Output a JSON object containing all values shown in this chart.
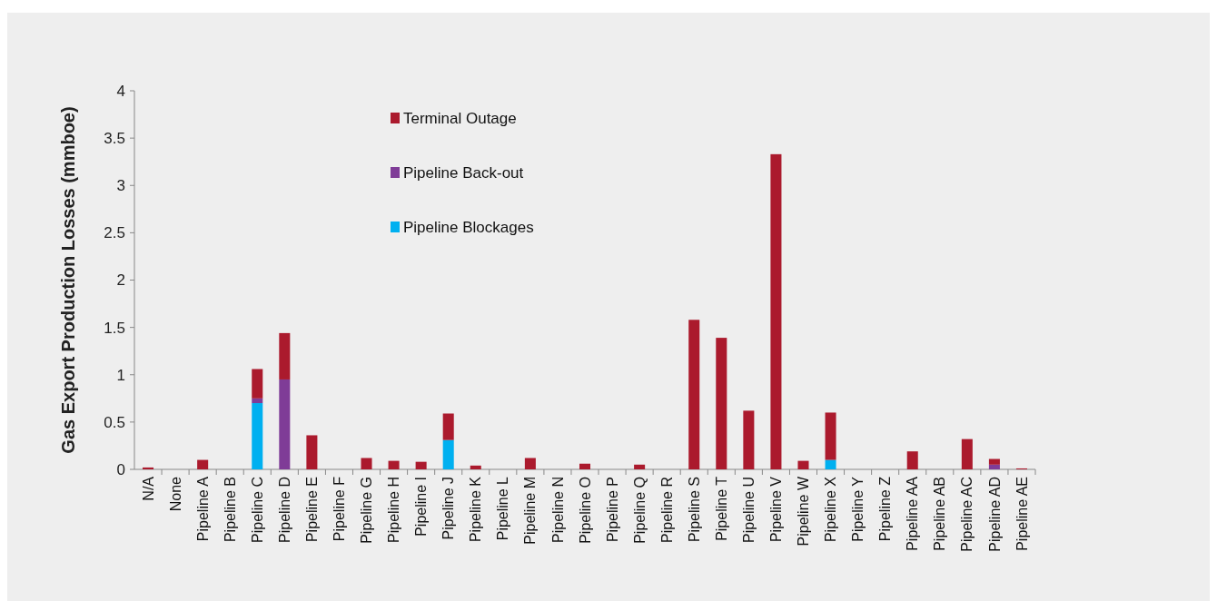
{
  "chart_data": {
    "type": "bar",
    "ylabel": "Gas Export Production Losses (mmboe)",
    "categories": [
      "N/A",
      "None",
      "Pipeline A",
      "Pipeline B",
      "Pipeline C",
      "Pipeline D",
      "Pipeline E",
      "Pipeline F",
      "Pipeline G",
      "Pipeline H",
      "Pipeline I",
      "Pipeline J",
      "Pipeline K",
      "Pipeline L",
      "Pipeline M",
      "Pipeline N",
      "Pipeline O",
      "Pipeline P",
      "Pipeline Q",
      "Pipeline R",
      "Pipeline S",
      "Pipeline T",
      "Pipeline U",
      "Pipeline V",
      "Pipeline W",
      "Pipeline X",
      "Pipeline Y",
      "Pipeline Z",
      "Pipeline AA",
      "Pipeline AB",
      "Pipeline AC",
      "Pipeline AD",
      "Pipeline AE"
    ],
    "series": [
      {
        "name": "Pipeline Blockages",
        "color": "#00b0f0",
        "values": [
          0,
          0,
          0,
          0,
          0.7,
          0,
          0,
          0,
          0,
          0,
          0,
          0.31,
          0,
          0,
          0,
          0,
          0,
          0,
          0,
          0,
          0,
          0,
          0,
          0,
          0,
          0.1,
          0,
          0,
          0,
          0,
          0,
          0,
          0
        ]
      },
      {
        "name": "Pipeline Back-out",
        "color": "#7f3c97",
        "values": [
          0,
          0,
          0,
          0,
          0.05,
          0.95,
          0,
          0,
          0,
          0,
          0,
          0,
          0,
          0,
          0,
          0,
          0,
          0,
          0,
          0,
          0,
          0,
          0,
          0,
          0,
          0,
          0,
          0,
          0,
          0,
          0,
          0.05,
          0
        ]
      },
      {
        "name": "Terminal Outage",
        "color": "#ab1a2d",
        "values": [
          0.02,
          0,
          0.1,
          0,
          0.31,
          0.49,
          0.36,
          0,
          0.12,
          0.09,
          0.08,
          0.28,
          0.04,
          0,
          0.12,
          0,
          0.06,
          0,
          0.05,
          0,
          1.58,
          1.39,
          0.62,
          3.33,
          0.09,
          0.5,
          0,
          0,
          0.19,
          0,
          0.32,
          0.06,
          0.01
        ]
      }
    ],
    "stacked": true,
    "ylim": [
      0,
      4
    ],
    "yticks": [
      0,
      0.5,
      1,
      1.5,
      2,
      2.5,
      3,
      3.5,
      4
    ],
    "grid": false,
    "legend": "top"
  }
}
